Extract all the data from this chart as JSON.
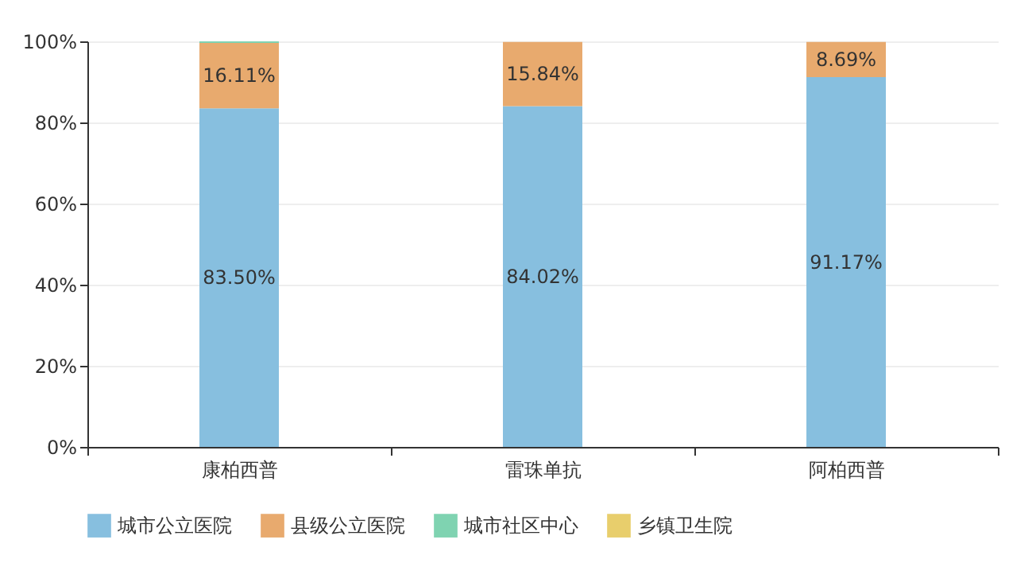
{
  "chart_data": {
    "type": "bar",
    "stacked": true,
    "categories": [
      "康柏西普",
      "雷珠单抗",
      "阿柏西普"
    ],
    "series": [
      {
        "name": "城市公立医院",
        "color": "#87bfdf",
        "values": [
          83.5,
          84.02,
          91.17
        ],
        "value_labels": [
          "83.50%",
          "84.02%",
          "91.17%"
        ]
      },
      {
        "name": "县级公立医院",
        "color": "#e8aa6e",
        "values": [
          16.11,
          15.84,
          8.69
        ],
        "value_labels": [
          "16.11%",
          "15.84%",
          "8.69%"
        ]
      },
      {
        "name": "城市社区中心",
        "color": "#7fd3b1",
        "values": [
          0.4,
          null,
          null
        ]
      },
      {
        "name": "乡镇卫生院",
        "color": "#e8ce6c",
        "values": [
          null,
          null,
          null
        ]
      }
    ],
    "ylim": [
      0,
      100
    ],
    "yticks": [
      {
        "value": 0,
        "label": "0%"
      },
      {
        "value": 20,
        "label": "20%"
      },
      {
        "value": 40,
        "label": "40%"
      },
      {
        "value": 60,
        "label": "60%"
      },
      {
        "value": 80,
        "label": "80%"
      },
      {
        "value": 100,
        "label": "100%"
      }
    ],
    "grid": "y",
    "legend": "bottom"
  }
}
